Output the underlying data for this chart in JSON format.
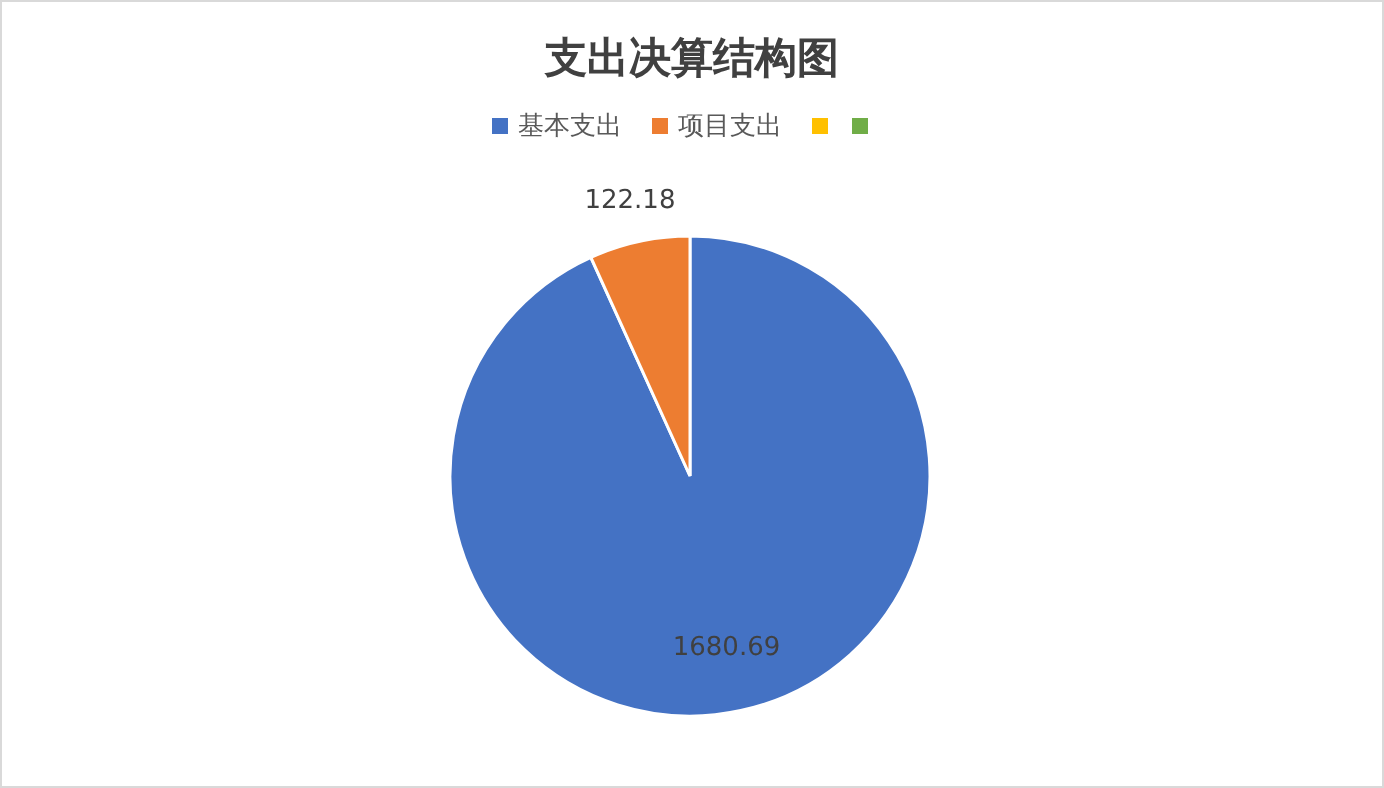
{
  "chart_data": {
    "type": "pie",
    "title": "支出决算结构图",
    "categories": [
      "基本支出",
      "项目支出",
      null,
      null
    ],
    "values": [
      1680.69,
      122.18,
      0,
      0
    ],
    "colors": [
      "#4472c4",
      "#ed7d31",
      "#ffc000",
      "#70ad47"
    ],
    "data_labels": true,
    "legend": "top"
  }
}
